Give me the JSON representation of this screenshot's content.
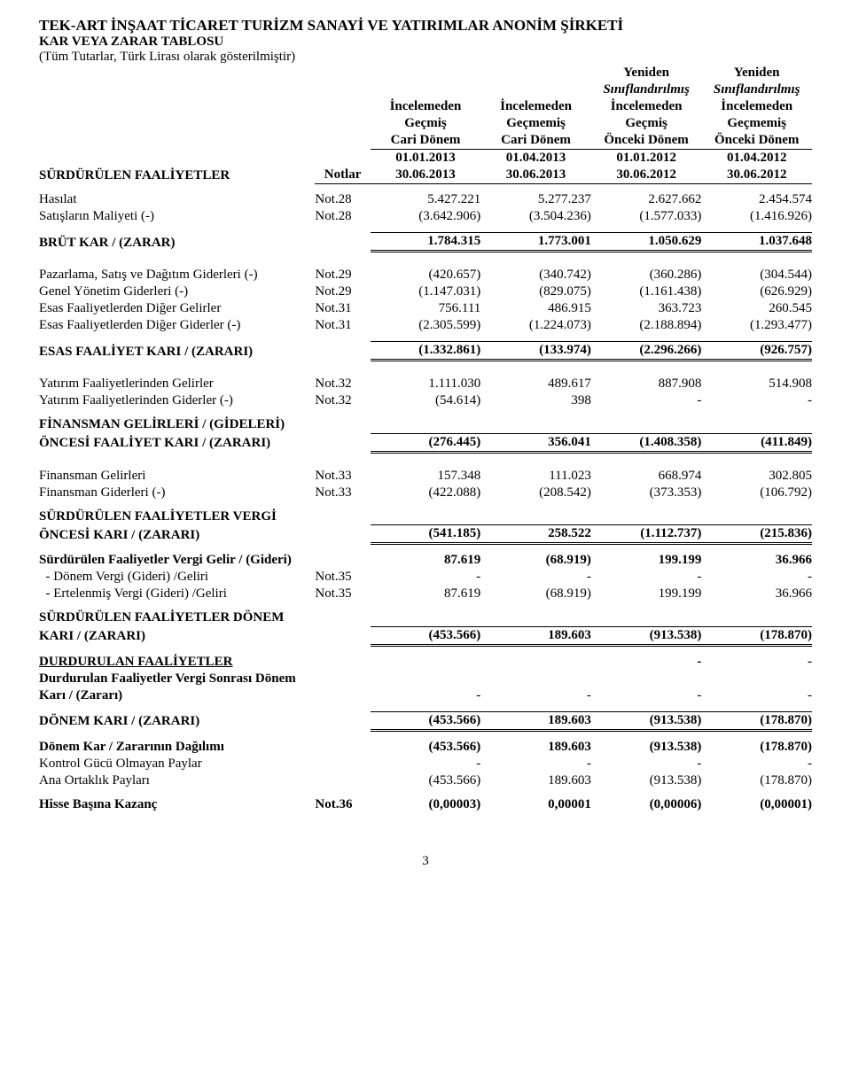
{
  "company": "TEK-ART İNŞAAT TİCARET TURİZM SANAYİ VE YATIRIMLAR ANONİM ŞİRKETİ",
  "statement_title": "KAR VEYA ZARAR TABLOSU",
  "currency_note": "(Tüm Tutarlar, Türk Lirası olarak gösterilmiştir)",
  "page_number": "3",
  "header": {
    "notlar": "Notlar",
    "yeniden": "Yeniden",
    "siniflandirilmis": "Sınıflandırılmış",
    "incelemeden": "İncelemeden",
    "gecmis": "Geçmiş",
    "gecmemis": "Geçmemiş",
    "cari": "Cari Dönem",
    "onceki": "Önceki Dönem",
    "date_start": [
      "01.01.2013",
      "01.04.2013",
      "01.01.2012",
      "01.04.2012"
    ],
    "date_end": [
      "30.06.2013",
      "30.06.2013",
      "30.06.2012",
      "30.06.2012"
    ]
  },
  "section_ongoing": "SÜRDÜRÜLEN FAALİYETLER",
  "rows": [
    {
      "label": "Hasılat",
      "note": "Not.28",
      "v": [
        "5.427.221",
        "5.277.237",
        "2.627.662",
        "2.454.574"
      ]
    },
    {
      "label": "Satışların Maliyeti (-)",
      "note": "Not.28",
      "v": [
        "(3.642.906)",
        "(3.504.236)",
        "(1.577.033)",
        "(1.416.926)"
      ]
    }
  ],
  "brut": {
    "label": "BRÜT KAR / (ZARAR)",
    "v": [
      "1.784.315",
      "1.773.001",
      "1.050.629",
      "1.037.648"
    ]
  },
  "mid_rows": [
    {
      "label": "Pazarlama, Satış ve Dağıtım Giderleri (-)",
      "note": "Not.29",
      "v": [
        "(420.657)",
        "(340.742)",
        "(360.286)",
        "(304.544)"
      ]
    },
    {
      "label": "Genel Yönetim Giderleri (-)",
      "note": "Not.29",
      "v": [
        "(1.147.031)",
        "(829.075)",
        "(1.161.438)",
        "(626.929)"
      ]
    },
    {
      "label": "Esas Faaliyetlerden Diğer Gelirler",
      "note": "Not.31",
      "v": [
        "756.111",
        "486.915",
        "363.723",
        "260.545"
      ]
    },
    {
      "label": "Esas Faaliyetlerden Diğer Giderler (-)",
      "note": "Not.31",
      "v": [
        "(2.305.599)",
        "(1.224.073)",
        "(2.188.894)",
        "(1.293.477)"
      ]
    }
  ],
  "esas": {
    "label": "ESAS FAALİYET KARI / (ZARARI)",
    "v": [
      "(1.332.861)",
      "(133.974)",
      "(2.296.266)",
      "(926.757)"
    ]
  },
  "yatirim": [
    {
      "label": "Yatırım Faaliyetlerinden Gelirler",
      "note": "Not.32",
      "v": [
        "1.111.030",
        "489.617",
        "887.908",
        "514.908"
      ]
    },
    {
      "label": "Yatırım Faaliyetlerinden Giderler (-)",
      "note": "Not.32",
      "v": [
        "(54.614)",
        "398",
        "-",
        "-"
      ]
    }
  ],
  "finansman_oncesi": {
    "label1": "FİNANSMAN GELİRLERİ /  (GİDELERİ)",
    "label2": "ÖNCESİ  FAALİYET KARI / (ZARARI)",
    "v": [
      "(276.445)",
      "356.041",
      "(1.408.358)",
      "(411.849)"
    ]
  },
  "finansman_rows": [
    {
      "label": "Finansman Gelirleri",
      "note": "Not.33",
      "v": [
        "157.348",
        "111.023",
        "668.974",
        "302.805"
      ]
    },
    {
      "label": "Finansman Giderleri (-)",
      "note": "Not.33",
      "v": [
        "(422.088)",
        "(208.542)",
        "(373.353)",
        "(106.792)"
      ]
    }
  ],
  "vergi_oncesi": {
    "label1": "SÜRDÜRÜLEN FAALİYETLER VERGİ",
    "label2": "ÖNCESİ KARI / (ZARARI)",
    "v": [
      "(541.185)",
      "258.522",
      "(1.112.737)",
      "(215.836)"
    ]
  },
  "vergi_rows": [
    {
      "label": "Sürdürülen Faaliyetler Vergi Gelir / (Gideri)",
      "note": "",
      "bold": true,
      "v": [
        "87.619",
        "(68.919)",
        "199.199",
        "36.966"
      ]
    },
    {
      "label": "  - Dönem Vergi (Gideri) /Geliri",
      "note": "Not.35",
      "v": [
        "-",
        "-",
        "-",
        "-"
      ]
    },
    {
      "label": "  - Ertelenmiş Vergi (Gideri) /Geliri",
      "note": "Not.35",
      "v": [
        "87.619",
        "(68.919)",
        "199.199",
        "36.966"
      ]
    }
  ],
  "donem_kari_surduruler": {
    "label1": "SÜRDÜRÜLEN FAALİYETLER DÖNEM",
    "label2": "KARI / (ZARARI)",
    "v": [
      "(453.566)",
      "189.603",
      "(913.538)",
      "(178.870)"
    ]
  },
  "durdurulan": {
    "label": "DURDURULAN FAALİYETLER",
    "v": [
      "",
      "",
      "-",
      "-"
    ]
  },
  "durdurulan_sub1": "Durdurulan Faaliyetler Vergi Sonrası Dönem",
  "durdurulan_sub2": "Karı / (Zararı)",
  "durdurulan_sub_v": [
    "-",
    "-",
    "-",
    "-"
  ],
  "donem_kari": {
    "label": "DÖNEM KARI / (ZARARI)",
    "v": [
      "(453.566)",
      "189.603",
      "(913.538)",
      "(178.870)"
    ]
  },
  "dagilim": {
    "label": "Dönem Kar / Zararının Dağılımı",
    "v": [
      "(453.566)",
      "189.603",
      "(913.538)",
      "(178.870)"
    ]
  },
  "kgo": {
    "label": "Kontrol Gücü Olmayan Paylar",
    "v": [
      "-",
      "-",
      "-",
      "-"
    ]
  },
  "ana": {
    "label": "Ana Ortaklık Payları",
    "v": [
      "(453.566)",
      "189.603",
      "(913.538)",
      "(178.870)"
    ]
  },
  "hisse": {
    "label": "Hisse Başına Kazanç",
    "note": "Not.36",
    "v": [
      "(0,00003)",
      "0,00001",
      "(0,00006)",
      "(0,00001)"
    ]
  }
}
